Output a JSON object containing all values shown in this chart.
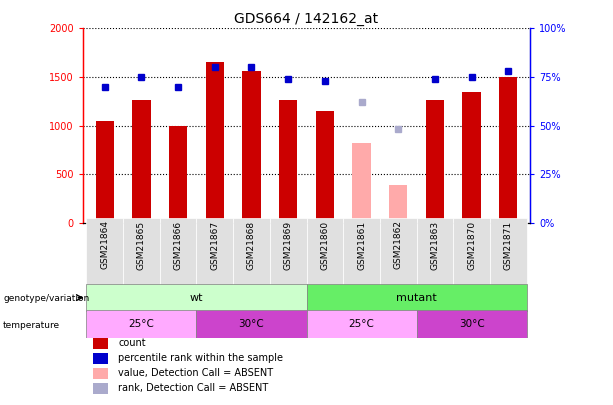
{
  "title": "GDS664 / 142162_at",
  "samples": [
    "GSM21864",
    "GSM21865",
    "GSM21866",
    "GSM21867",
    "GSM21868",
    "GSM21869",
    "GSM21860",
    "GSM21861",
    "GSM21862",
    "GSM21863",
    "GSM21870",
    "GSM21871"
  ],
  "bar_values": [
    1050,
    1260,
    1000,
    1650,
    1560,
    1260,
    1150,
    820,
    390,
    1260,
    1350,
    1500
  ],
  "bar_colors": [
    "#cc0000",
    "#cc0000",
    "#cc0000",
    "#cc0000",
    "#cc0000",
    "#cc0000",
    "#cc0000",
    "#ffaaaa",
    "#ffaaaa",
    "#cc0000",
    "#cc0000",
    "#cc0000"
  ],
  "rank_values": [
    70,
    75,
    70,
    80,
    80,
    74,
    73,
    62,
    48,
    74,
    75,
    78
  ],
  "rank_colors": [
    "#0000cc",
    "#0000cc",
    "#0000cc",
    "#0000cc",
    "#0000cc",
    "#0000cc",
    "#0000cc",
    "#aaaacc",
    "#aaaacc",
    "#0000cc",
    "#0000cc",
    "#0000cc"
  ],
  "ylim_left": [
    0,
    2000
  ],
  "ylim_right": [
    0,
    100
  ],
  "yticks_left": [
    0,
    500,
    1000,
    1500,
    2000
  ],
  "yticks_right": [
    0,
    25,
    50,
    75,
    100
  ],
  "ytick_labels_left": [
    "0",
    "500",
    "1000",
    "1500",
    "2000"
  ],
  "ytick_labels_right": [
    "0%",
    "25%",
    "50%",
    "75%",
    "100%"
  ],
  "color_wt": "#ccffcc",
  "color_mutant": "#66ee66",
  "color_temp_25": "#ffaaff",
  "color_temp_30": "#cc44cc",
  "bar_width": 0.5,
  "legend_items": [
    {
      "label": "count",
      "color": "#cc0000"
    },
    {
      "label": "percentile rank within the sample",
      "color": "#0000cc"
    },
    {
      "label": "value, Detection Call = ABSENT",
      "color": "#ffaaaa"
    },
    {
      "label": "rank, Detection Call = ABSENT",
      "color": "#aaaacc"
    }
  ]
}
